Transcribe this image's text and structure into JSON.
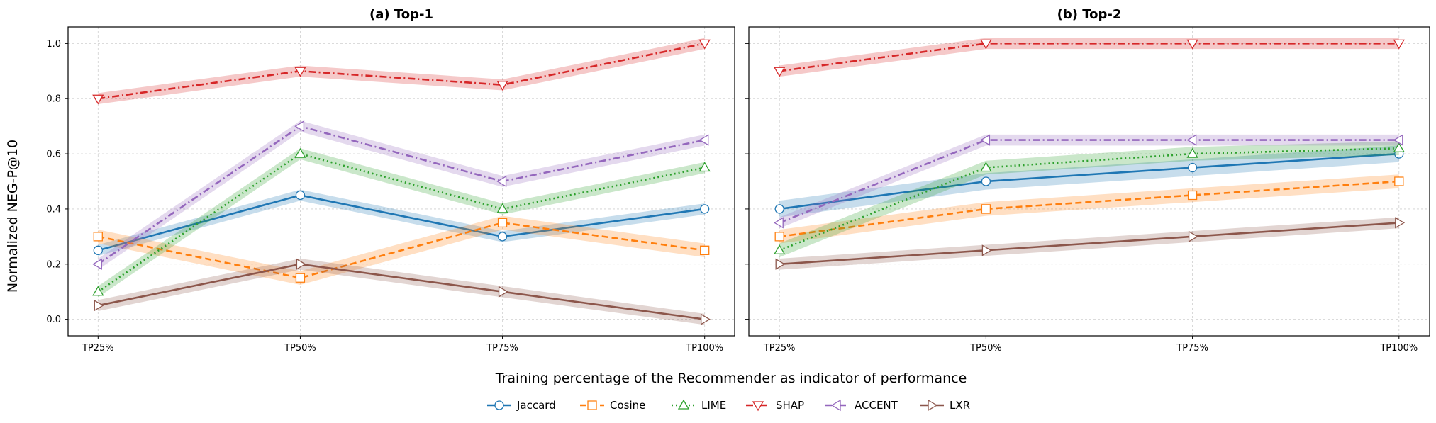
{
  "figure": {
    "ylabel": "Normalized NEG-P@10",
    "xlabel": "Training percentage of the Recommender as indicator of performance"
  },
  "chart_data": [
    {
      "type": "line",
      "title": "(a) Top-1",
      "categories": [
        "TP25%",
        "TP50%",
        "TP75%",
        "TP100%"
      ],
      "ylim": [
        -0.06,
        1.06
      ],
      "yticks": [
        "0.0",
        "0.2",
        "0.4",
        "0.6",
        "0.8",
        "1.0"
      ],
      "grid": true,
      "series": [
        {
          "name": "Jaccard",
          "values": [
            0.25,
            0.45,
            0.3,
            0.4
          ],
          "band": 0.02
        },
        {
          "name": "Cosine",
          "values": [
            0.3,
            0.15,
            0.35,
            0.25
          ],
          "band": 0.025
        },
        {
          "name": "LIME",
          "values": [
            0.1,
            0.6,
            0.4,
            0.55
          ],
          "band": 0.02
        },
        {
          "name": "SHAP",
          "values": [
            0.8,
            0.9,
            0.85,
            1.0
          ],
          "band": 0.02
        },
        {
          "name": "ACCENT",
          "values": [
            0.2,
            0.7,
            0.5,
            0.65
          ],
          "band": 0.02
        },
        {
          "name": "LXR",
          "values": [
            0.05,
            0.2,
            0.1,
            0.0
          ],
          "band": 0.02
        }
      ]
    },
    {
      "type": "line",
      "title": "(b) Top-2",
      "categories": [
        "TP25%",
        "TP50%",
        "TP75%",
        "TP100%"
      ],
      "ylim": [
        -0.06,
        1.06
      ],
      "grid": true,
      "series": [
        {
          "name": "Jaccard",
          "values": [
            0.4,
            0.5,
            0.55,
            0.6
          ],
          "band": 0.03
        },
        {
          "name": "Cosine",
          "values": [
            0.3,
            0.4,
            0.45,
            0.5
          ],
          "band": 0.025
        },
        {
          "name": "LIME",
          "values": [
            0.25,
            0.55,
            0.6,
            0.62
          ],
          "band": 0.025
        },
        {
          "name": "SHAP",
          "values": [
            0.9,
            1.0,
            1.0,
            1.0
          ],
          "band": 0.02
        },
        {
          "name": "ACCENT",
          "values": [
            0.35,
            0.65,
            0.65,
            0.65
          ],
          "band": 0.02
        },
        {
          "name": "LXR",
          "values": [
            0.2,
            0.25,
            0.3,
            0.35
          ],
          "band": 0.02
        }
      ]
    }
  ],
  "legend": {
    "placement": "bottom-center",
    "items": [
      {
        "label": "Jaccard",
        "color": "#1f77b4",
        "marker": "circle-icon",
        "dash": "solid"
      },
      {
        "label": "Cosine",
        "color": "#ff7f0e",
        "marker": "square-icon",
        "dash": "dashed"
      },
      {
        "label": "LIME",
        "color": "#2ca02c",
        "marker": "triangle-up-icon",
        "dash": "dotted"
      },
      {
        "label": "SHAP",
        "color": "#d62728",
        "marker": "triangle-down-icon",
        "dash": "dashdot"
      },
      {
        "label": "ACCENT",
        "color": "#9467bd",
        "marker": "triangle-left-icon",
        "dash": "dashdot"
      },
      {
        "label": "LXR",
        "color": "#8c564b",
        "marker": "triangle-right-icon",
        "dash": "solid"
      }
    ]
  }
}
